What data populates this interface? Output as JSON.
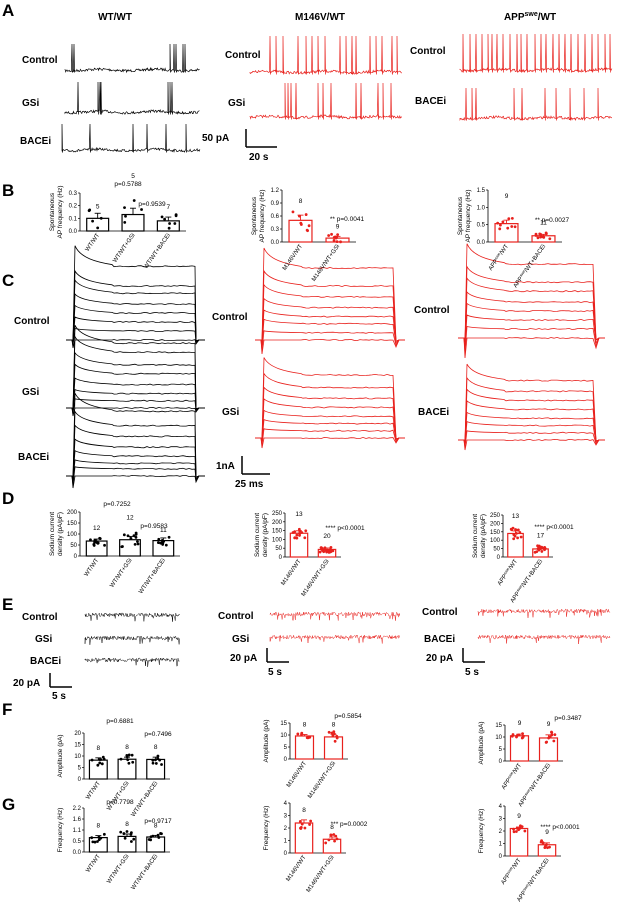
{
  "panels": {
    "A": "A",
    "B": "B",
    "C": "C",
    "D": "D",
    "E": "E",
    "F": "F",
    "G": "G"
  },
  "columns": {
    "wt": "WT/WT",
    "m146v": "M146V/WT",
    "app_sup": "swe",
    "app_prefix": "APP",
    "app_suffix": "/WT"
  },
  "rows": {
    "control": "Control",
    "gsi": "GSi",
    "bacei": "BACEi"
  },
  "scalebars": {
    "a_y": "50 pA",
    "a_x": "20 s",
    "c_y": "1nA",
    "c_x": "25 ms",
    "e_y": "20 pA",
    "e_x": "5 s"
  },
  "colors": {
    "wt": "#000000",
    "mut": "#e8211d"
  },
  "chart_data": [
    {
      "id": "B-wt",
      "type": "bar",
      "ylabel_line1": "Spontaneous",
      "ylabel_line2": "AP frequency (Hz)",
      "categories": [
        "WT/WT",
        "WT/WT+GSi",
        "WT/WT+BACEi"
      ],
      "values": [
        0.1,
        0.13,
        0.08
      ],
      "sem": [
        0.04,
        0.05,
        0.03
      ],
      "n": [
        "5",
        "5",
        "7"
      ],
      "yticks": [
        "0.0",
        "0.1",
        "0.2",
        "0.3"
      ],
      "ylim": [
        0,
        0.3
      ],
      "pvals": [
        "p=0.5788",
        "p=0.9539"
      ]
    },
    {
      "id": "B-m146v",
      "type": "bar",
      "ylabel_line1": "Spontaneous",
      "ylabel_line2": "AP frequency (Hz)",
      "categories": [
        "M146V/WT",
        "M146V/WT+GSi"
      ],
      "values": [
        0.5,
        0.09
      ],
      "sem": [
        0.12,
        0.04
      ],
      "n": [
        "8",
        "9"
      ],
      "yticks": [
        "0.0",
        "0.3",
        "0.6",
        "0.9",
        "1.2"
      ],
      "ylim": [
        0,
        1.2
      ],
      "pvals": [
        "** p=0.0041"
      ]
    },
    {
      "id": "B-app",
      "type": "bar",
      "ylabel_line1": "Spontaneous",
      "ylabel_line2": "AP frequency (Hz)",
      "categories": [
        "APPswe/WT",
        "APPswe/WT+BACEi"
      ],
      "values": [
        0.53,
        0.18
      ],
      "sem": [
        0.1,
        0.04
      ],
      "n": [
        "9",
        "11"
      ],
      "yticks": [
        "0.0",
        "0.5",
        "1.0",
        "1.5"
      ],
      "ylim": [
        0,
        1.5
      ],
      "pvals": [
        "** p=0.0027"
      ]
    },
    {
      "id": "D-wt",
      "type": "bar",
      "ylabel_line1": "Sodium current",
      "ylabel_line2": "density (pA/pF)",
      "categories": [
        "WT/WT",
        "WT/WT+GSi",
        "WT/WT+BACEi"
      ],
      "values": [
        68,
        74,
        70
      ],
      "sem": [
        9,
        15,
        12
      ],
      "n": [
        "12",
        "12",
        "11"
      ],
      "yticks": [
        "0",
        "50",
        "100",
        "150",
        "200"
      ],
      "ylim": [
        0,
        200
      ],
      "pvals": [
        "p=0.7252",
        "p=0.9583"
      ]
    },
    {
      "id": "D-m146v",
      "type": "bar",
      "ylabel_line1": "Sodium current",
      "ylabel_line2": "density (pA/pF)",
      "categories": [
        "M146V/WT",
        "M146V/WT+GSi"
      ],
      "values": [
        135,
        43
      ],
      "sem": [
        14,
        8
      ],
      "n": [
        "13",
        "20"
      ],
      "yticks": [
        "0",
        "50",
        "100",
        "150",
        "200",
        "250"
      ],
      "ylim": [
        0,
        250
      ],
      "pvals": [
        "**** p<0.0001"
      ]
    },
    {
      "id": "D-app",
      "type": "bar",
      "ylabel_line1": "Sodium current",
      "ylabel_line2": "density (pA/pF)",
      "categories": [
        "APPswe/WT",
        "APPswe/WT+BACEi"
      ],
      "values": [
        140,
        48
      ],
      "sem": [
        15,
        9
      ],
      "n": [
        "13",
        "17"
      ],
      "yticks": [
        "0",
        "50",
        "100",
        "150",
        "200",
        "250"
      ],
      "ylim": [
        0,
        250
      ],
      "pvals": [
        "**** p<0.0001"
      ]
    },
    {
      "id": "F-wt",
      "type": "bar",
      "ylabel_line1": "",
      "ylabel_line2": "Amplitude (pA)",
      "categories": [
        "WT/WT",
        "WT/WT+GSi",
        "WT/WT+BACEi"
      ],
      "values": [
        8.2,
        8.6,
        8.5
      ],
      "sem": [
        1.0,
        0.9,
        1.0
      ],
      "n": [
        "8",
        "8",
        "8"
      ],
      "yticks": [
        "0",
        "5",
        "10",
        "15",
        "20"
      ],
      "ylim": [
        0,
        20
      ],
      "pvals": [
        "p=0.6881",
        "p=0.7496"
      ]
    },
    {
      "id": "F-m146v",
      "type": "bar",
      "ylabel_line1": "",
      "ylabel_line2": "Amplitude (pA)",
      "categories": [
        "M146V/WT",
        "M146V/WT+GSi"
      ],
      "values": [
        9.6,
        9.2
      ],
      "sem": [
        0.6,
        1.1
      ],
      "n": [
        "8",
        "8"
      ],
      "yticks": [
        "0",
        "5",
        "10",
        "15"
      ],
      "ylim": [
        0,
        15
      ],
      "pvals": [
        "p=0.5854"
      ]
    },
    {
      "id": "F-app",
      "type": "bar",
      "ylabel_line1": "",
      "ylabel_line2": "Amplitude (pA)",
      "categories": [
        "APPswe/WT",
        "APPswe/WT+BACEi"
      ],
      "values": [
        10.5,
        9.6
      ],
      "sem": [
        0.7,
        1.3
      ],
      "n": [
        "9",
        "9"
      ],
      "yticks": [
        "0",
        "5",
        "10",
        "15"
      ],
      "ylim": [
        0,
        15
      ],
      "pvals": [
        "p=0.3487"
      ]
    },
    {
      "id": "G-wt",
      "type": "bar",
      "ylabel_line1": "",
      "ylabel_line2": "Frequency (Hz)",
      "categories": [
        "WT/WT",
        "WT/WT+GSi",
        "WT/WT+BACEi"
      ],
      "values": [
        0.72,
        0.78,
        0.75
      ],
      "sem": [
        0.1,
        0.12,
        0.08
      ],
      "n": [
        "8",
        "8",
        "8"
      ],
      "yticks": [
        "0.0",
        "0.5",
        "1.1",
        "1.6",
        "2.2"
      ],
      "ylim": [
        0,
        2.2
      ],
      "pvals": [
        "p=0.7798",
        "p=0.9717"
      ]
    },
    {
      "id": "G-m146v",
      "type": "bar",
      "ylabel_line1": "",
      "ylabel_line2": "Frequency (Hz)",
      "categories": [
        "M146V/WT",
        "M146V/WT+GSi"
      ],
      "values": [
        2.4,
        1.1
      ],
      "sem": [
        0.25,
        0.18
      ],
      "n": [
        "8",
        "8"
      ],
      "yticks": [
        "0",
        "1",
        "2",
        "3",
        "4"
      ],
      "ylim": [
        0,
        4
      ],
      "pvals": [
        "*** p=0.0002"
      ]
    },
    {
      "id": "G-app",
      "type": "bar",
      "ylabel_line1": "",
      "ylabel_line2": "Frequency (Hz)",
      "categories": [
        "APPswe/WT",
        "APPswe/WT+BACEi"
      ],
      "values": [
        2.2,
        0.9
      ],
      "sem": [
        0.12,
        0.15
      ],
      "n": [
        "9",
        "9"
      ],
      "yticks": [
        "0",
        "1",
        "2",
        "3",
        "4"
      ],
      "ylim": [
        0,
        4
      ],
      "pvals": [
        "**** p<0.0001"
      ]
    }
  ]
}
